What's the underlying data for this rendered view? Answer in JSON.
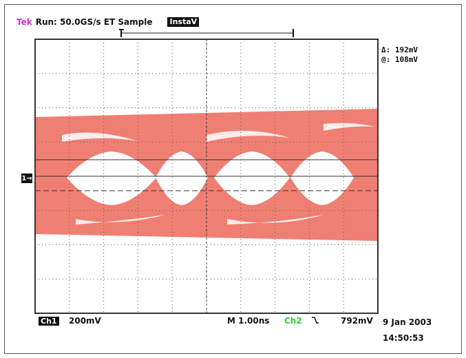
{
  "header": {
    "brand": "Tek",
    "run_status": "Run: 50.0GS/s ET Sample",
    "acq_mode": "InstaV"
  },
  "readouts": {
    "delta": "Δ: 192mV",
    "at": "@: 108mV"
  },
  "channel_marker": "1→",
  "footer": {
    "ch1_badge": "Ch1",
    "ch1_scale": "200mV",
    "timebase": "M 1.00ns",
    "trigger_source": "Ch2",
    "trigger_slope_icon": "falling-edge-icon",
    "trigger_level": "792mV",
    "date": "9 Jan 2003",
    "time": "14:50:53"
  },
  "colors": {
    "trace": "#f07f73",
    "grid": "#555555",
    "brand": "#cc33cc",
    "trigger_source": "#33cc33"
  },
  "chart_data": {
    "type": "eye-diagram",
    "grid": true
  }
}
